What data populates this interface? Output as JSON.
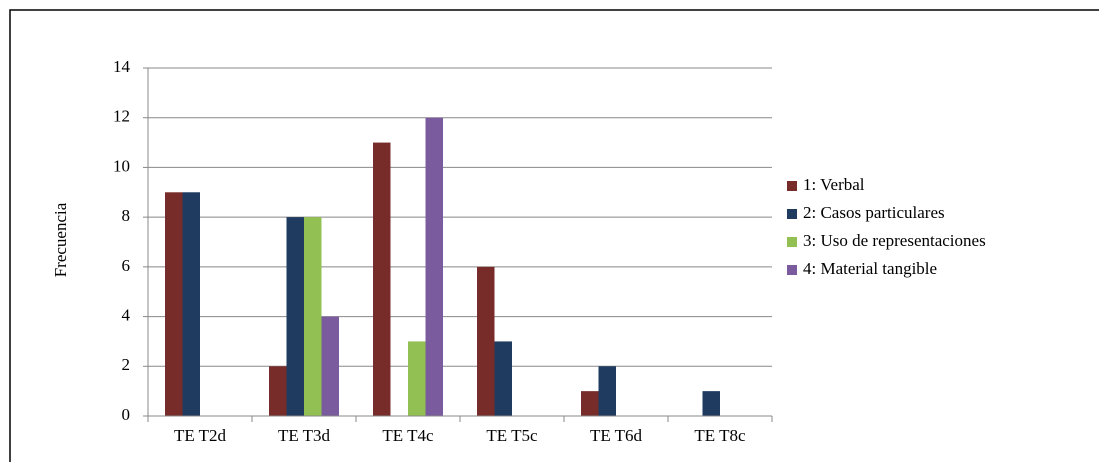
{
  "chart_data": {
    "type": "bar",
    "ylabel": "Frecuencia",
    "categories": [
      "TE T2d",
      "TE T3d",
      "TE T4c",
      "TE T5c",
      "TE T6d",
      "TE T8c"
    ],
    "series": [
      {
        "name": "1: Verbal",
        "color": "#772c2a",
        "values": [
          9,
          2,
          11,
          6,
          1,
          0
        ]
      },
      {
        "name": "2: Casos particulares",
        "color": "#1f3b60",
        "values": [
          9,
          8,
          0,
          3,
          2,
          1
        ]
      },
      {
        "name": "3: Uso de representaciones",
        "color": "#93c052",
        "values": [
          0,
          8,
          3,
          0,
          0,
          0
        ]
      },
      {
        "name": "4: Material tangible",
        "color": "#7a5c9e",
        "values": [
          0,
          4,
          12,
          0,
          0,
          0
        ]
      }
    ],
    "ylim": [
      0,
      14
    ],
    "yticks": [
      0,
      2,
      4,
      6,
      8,
      10,
      12,
      14
    ],
    "grid": true,
    "legend": "right"
  }
}
